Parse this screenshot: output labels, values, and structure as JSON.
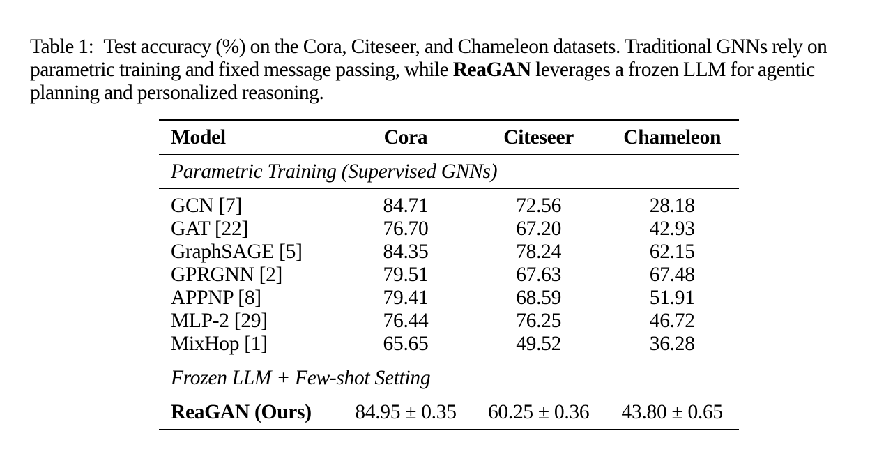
{
  "caption": {
    "label": "Table 1:",
    "text_before": "Test accuracy (%) on the Cora, Citeseer, and Chameleon datasets. Traditional GNNs rely on parametric training and fixed message passing, while ",
    "bold": "ReaGAN",
    "text_after": " leverages a frozen LLM for agentic planning and personalized reasoning."
  },
  "table": {
    "headers": [
      "Model",
      "Cora",
      "Citeseer",
      "Chameleon"
    ],
    "sections": [
      {
        "title": "Parametric Training (Supervised GNNs)",
        "rows": [
          {
            "model": "GCN [7]",
            "cora": "84.71",
            "citeseer": "72.56",
            "chameleon": "28.18"
          },
          {
            "model": "GAT [22]",
            "cora": "76.70",
            "citeseer": "67.20",
            "chameleon": "42.93"
          },
          {
            "model": "GraphSAGE [5]",
            "cora": "84.35",
            "citeseer": "78.24",
            "chameleon": "62.15"
          },
          {
            "model": "GPRGNN [2]",
            "cora": "79.51",
            "citeseer": "67.63",
            "chameleon": "67.48"
          },
          {
            "model": "APPNP [8]",
            "cora": "79.41",
            "citeseer": "68.59",
            "chameleon": "51.91"
          },
          {
            "model": "MLP-2 [29]",
            "cora": "76.44",
            "citeseer": "76.25",
            "chameleon": "46.72"
          },
          {
            "model": "MixHop [1]",
            "cora": "65.65",
            "citeseer": "49.52",
            "chameleon": "36.28"
          }
        ]
      },
      {
        "title": "Frozen LLM + Few-shot Setting",
        "rows": [
          {
            "model": "ReaGAN (Ours)",
            "cora": "84.95 ± 0.35",
            "citeseer": "60.25 ± 0.36",
            "chameleon": "43.80 ± 0.65"
          }
        ]
      }
    ]
  }
}
